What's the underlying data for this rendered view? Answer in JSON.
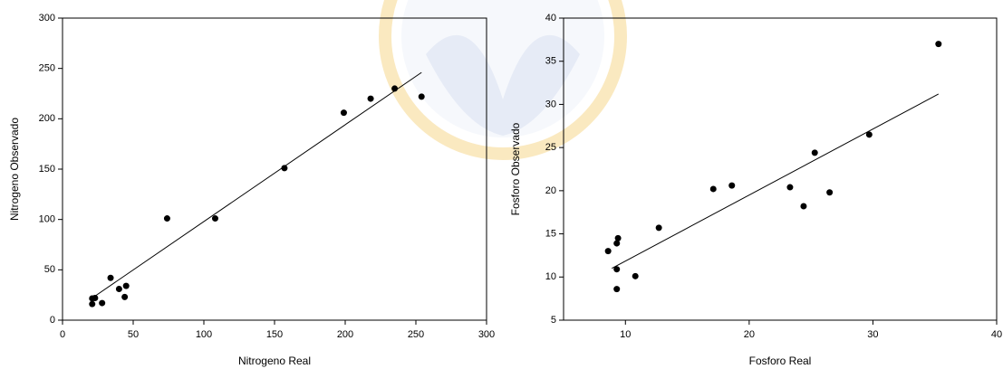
{
  "chart_data": [
    {
      "type": "scatter",
      "x_label": "Nitrogeno Real",
      "y_label": "Nitrogeno Observado",
      "x": [
        21,
        23,
        21,
        28,
        34,
        40,
        45,
        44,
        74,
        108,
        157,
        199,
        218,
        235,
        254
      ],
      "values": [
        21.6,
        22,
        16,
        17,
        42,
        31,
        34,
        23,
        101,
        101,
        151,
        206,
        220,
        230,
        222
      ],
      "fit_line": {
        "x": [
          21,
          254
        ],
        "y": [
          22,
          246
        ]
      },
      "color": "#000000",
      "xlim": [
        0,
        300
      ],
      "xticks": [
        0,
        50,
        100,
        150,
        200,
        250,
        300
      ],
      "ylim": [
        0,
        300
      ],
      "yticks": [
        0,
        50,
        100,
        150,
        200,
        250,
        300
      ]
    },
    {
      "type": "scatter",
      "x_label": "Fosforo Real",
      "y_label": "Fosforo Observado",
      "x": [
        8.6,
        9.3,
        9.4,
        9.3,
        9.3,
        10.8,
        12.7,
        17.1,
        18.6,
        23.3,
        24.4,
        25.3,
        26.5,
        29.7,
        35.3
      ],
      "values": [
        13.0,
        13.9,
        14.5,
        10.9,
        8.6,
        10.1,
        15.7,
        20.2,
        20.6,
        20.4,
        18.2,
        24.4,
        19.8,
        26.5,
        37.0
      ],
      "fit_line": {
        "x": [
          8.9,
          35.3
        ],
        "y": [
          11.0,
          31.2
        ]
      },
      "color": "#000000",
      "xlim": [
        5,
        40
      ],
      "xticks": [
        10,
        20,
        30,
        40
      ],
      "ylim": [
        5,
        40
      ],
      "yticks": [
        5,
        10,
        15,
        20,
        25,
        30,
        35,
        40
      ]
    }
  ]
}
